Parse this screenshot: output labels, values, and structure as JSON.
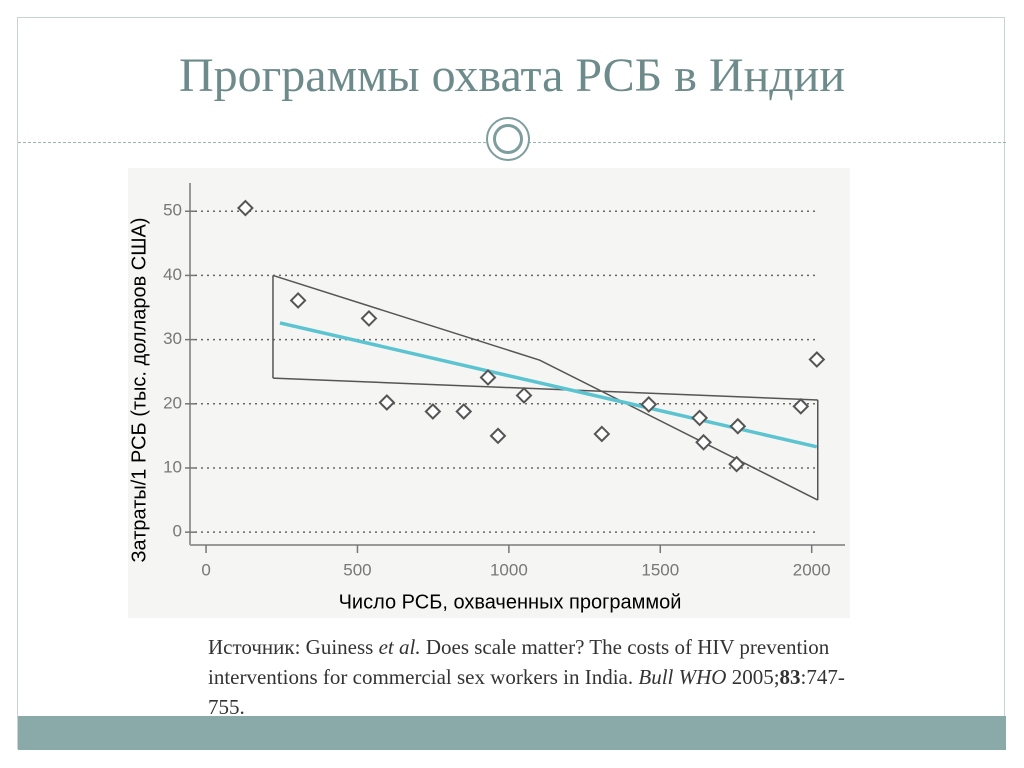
{
  "title": "Программы охвата РСБ в Индии",
  "chart_data": {
    "type": "scatter",
    "x_label": "Число РСБ, охваченных программой",
    "y_label": "Затраты/1 РСБ (тыс. долларов США)",
    "x": [
      130,
      304,
      538,
      597,
      749,
      851,
      931,
      964,
      1050,
      1307,
      1462,
      1630,
      1643,
      1756,
      1752,
      1964,
      2017
    ],
    "values": [
      50.5,
      36.1,
      33.3,
      20.2,
      18.8,
      18.8,
      24.1,
      15.0,
      21.3,
      15.3,
      19.9,
      17.8,
      14.0,
      16.5,
      10.6,
      19.6,
      26.9
    ],
    "marker_color": "#555555",
    "regression": {
      "x": [
        244,
        2017
      ],
      "values": [
        32.6,
        13.3
      ],
      "color": "#5bc4d0"
    },
    "band": {
      "color": "#555555",
      "upper": {
        "x": [
          221,
          1102,
          2020
        ],
        "values": [
          40.0,
          26.8,
          5.0
        ]
      },
      "lower": {
        "x": [
          221,
          2020
        ],
        "values": [
          24.0,
          20.6
        ]
      }
    },
    "xlim": [
      -53,
      2110
    ],
    "ylim": [
      -2,
      54.4
    ],
    "xticks": [
      0,
      500,
      1000,
      1500,
      2000
    ],
    "yticks": [
      0,
      10,
      20,
      30,
      40,
      50
    ],
    "grid": true
  },
  "source": [
    "Источник: Guiness ",
    "et al.",
    " Does scale matter? The costs of HIV prevention interventions for commercial sex workers in India. ",
    "Bull WHO",
    " 2005;",
    "83",
    ":747-755."
  ]
}
